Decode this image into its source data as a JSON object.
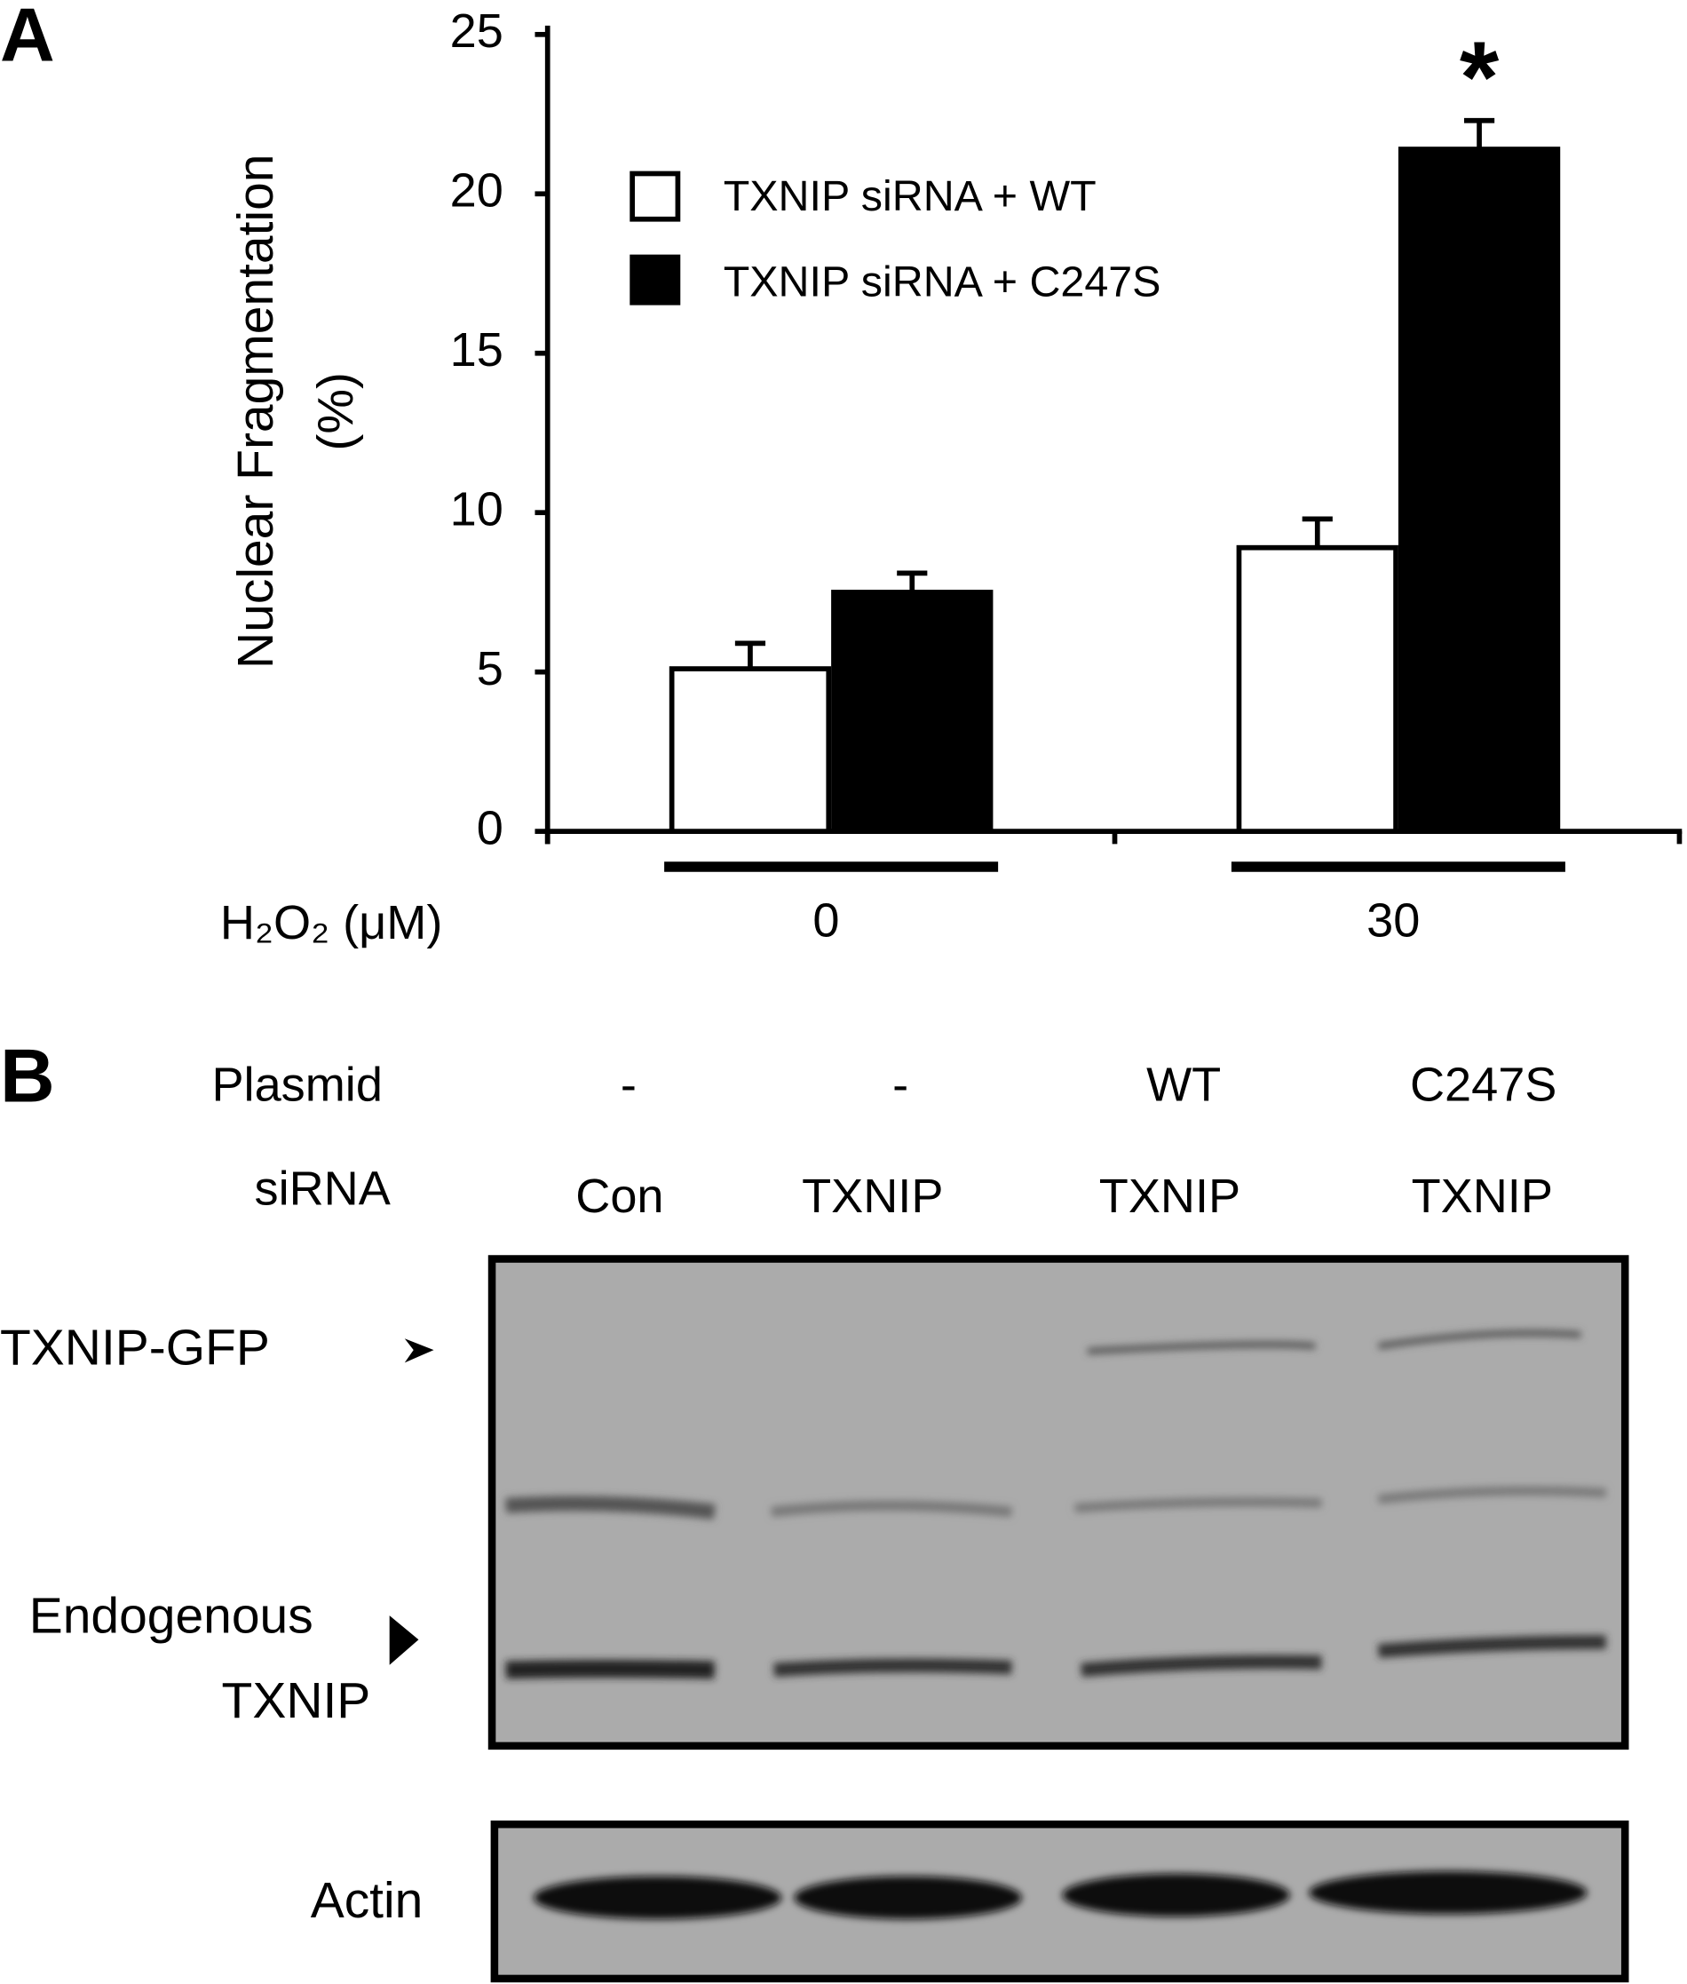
{
  "chart_data": {
    "type": "bar",
    "panel_label": "A",
    "ylabel": [
      "Nuclear Fragmentation",
      "(%)"
    ],
    "xlabel": "H₂O₂ (μM)",
    "categories": [
      "0",
      "30"
    ],
    "series": [
      {
        "name": "TXNIP siRNA + WT",
        "color": "#ffffff",
        "values": [
          5.1,
          8.9
        ],
        "errors": [
          0.8,
          0.9
        ]
      },
      {
        "name": "TXNIP siRNA + C247S",
        "color": "#000000",
        "values": [
          7.5,
          21.4
        ],
        "errors": [
          0.6,
          0.9
        ]
      }
    ],
    "annotation": "*",
    "ylim": [
      0,
      25
    ],
    "yticks": [
      0,
      5,
      10,
      15,
      20,
      25
    ],
    "legend": "upper left",
    "grid": false
  },
  "panel_b": {
    "panel_label": "B",
    "rows": [
      {
        "label": "Plasmid",
        "lanes": [
          "-",
          "-",
          "WT",
          "C247S"
        ]
      },
      {
        "label": "siRNA",
        "lanes": [
          "Con",
          "TXNIP",
          "TXNIP",
          "TXNIP"
        ]
      }
    ],
    "band_labels": {
      "txnip_gfp": "TXNIP-GFP",
      "endogenous": [
        "Endogenous",
        "TXNIP"
      ],
      "actin": "Actin"
    }
  }
}
